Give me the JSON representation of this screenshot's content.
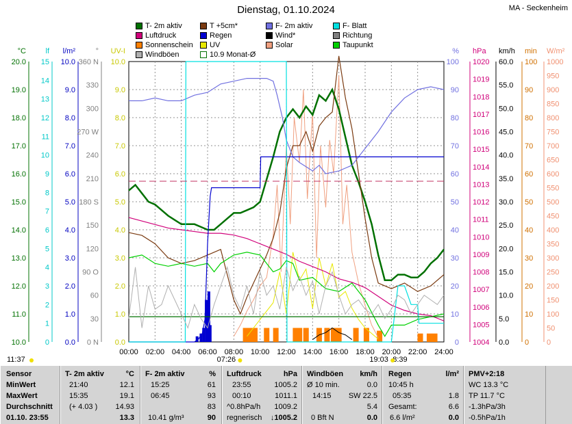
{
  "title": "Dienstag, 01.10.2024",
  "location": "MA - Seckenheim",
  "legend": [
    {
      "label": "T- 2m aktiv",
      "color": "#007000"
    },
    {
      "label": "T +5cm*",
      "color": "#7a3a10"
    },
    {
      "label": "F- 2m aktiv",
      "color": "#7070e0"
    },
    {
      "label": "F- Blatt",
      "color": "#00e0e0"
    },
    {
      "label": "Luftdruck",
      "color": "#d0007a"
    },
    {
      "label": "Regen",
      "color": "#0000d0"
    },
    {
      "label": "Wind*",
      "color": "#000000"
    },
    {
      "label": "Richtung",
      "color": "#808080"
    },
    {
      "label": "Sonnenschein",
      "color": "#ff8000"
    },
    {
      "label": "UV",
      "color": "#e8e800"
    },
    {
      "label": "Solar",
      "color": "#f0a080"
    },
    {
      "label": "Taupunkt",
      "color": "#00d000"
    },
    {
      "label": "Windböen",
      "color": "#b0b0b0"
    },
    {
      "label": "10.9 Monat-Ø",
      "color": "#007000"
    }
  ],
  "units": {
    "temp": "°C",
    "leaf": "lf",
    "rain": "l/m²",
    "dir": "°",
    "uv": "UV-I",
    "hum": "%",
    "press": "hPa",
    "wind": "km/h",
    "sun": "min",
    "solar": "W/m²"
  },
  "axis_ticks": {
    "temp": [
      "20.0",
      "19.0",
      "18.0",
      "17.0",
      "16.0",
      "15.0",
      "14.0",
      "13.0",
      "12.0",
      "11.0",
      "10.0"
    ],
    "leaf": [
      "15",
      "14",
      "13",
      "12",
      "11",
      "10",
      "9",
      "8",
      "7",
      "6",
      "5",
      "4",
      "3",
      "2",
      "1",
      "0"
    ],
    "rain": [
      "10.0",
      "9.0",
      "8.0",
      "7.0",
      "6.0",
      "5.0",
      "4.0",
      "3.0",
      "2.0",
      "1.0",
      "0.0"
    ],
    "dir": [
      "360 N",
      "330",
      "300",
      "270 W",
      "240",
      "210",
      "180 S",
      "150",
      "120",
      "90 O",
      "60",
      "30",
      "0 N"
    ],
    "uv": [
      "10.0",
      "9.0",
      "8.0",
      "7.0",
      "6.0",
      "5.0",
      "4.0",
      "3.0",
      "2.0",
      "1.0",
      "0.0"
    ],
    "hum": [
      "100",
      "90",
      "80",
      "70",
      "60",
      "50",
      "40",
      "30",
      "20",
      "10",
      "0"
    ],
    "press": [
      "1020",
      "1019",
      "1018",
      "1017",
      "1016",
      "1015",
      "1014",
      "1013",
      "1012",
      "1011",
      "1010",
      "1009",
      "1008",
      "1007",
      "1006",
      "1005",
      "1004"
    ],
    "wind": [
      "60.0",
      "55.0",
      "50.0",
      "45.0",
      "40.0",
      "35.0",
      "30.0",
      "25.0",
      "20.0",
      "15.0",
      "10.0",
      "5.0",
      "0.0"
    ],
    "sun": [
      "100",
      "90",
      "80",
      "70",
      "60",
      "50",
      "40",
      "30",
      "20",
      "10",
      "0"
    ],
    "solar": [
      "1000",
      "950",
      "900",
      "850",
      "800",
      "750",
      "700",
      "650",
      "600",
      "550",
      "500",
      "450",
      "400",
      "350",
      "300",
      "250",
      "200",
      "150",
      "100",
      "50",
      "0"
    ]
  },
  "x_ticks": [
    "00:00",
    "02:00",
    "04:00",
    "06:00",
    "08:00",
    "10:00",
    "12:00",
    "14:00",
    "16:00",
    "18:00",
    "20:00",
    "22:00",
    "24:00"
  ],
  "sun_times": {
    "rise_time": "07:26",
    "set_time": "19:03",
    "left": "11:37",
    "duration": "8:39"
  },
  "chart_data": {
    "type": "line",
    "x_unit": "hours",
    "xlim": [
      0,
      24
    ],
    "series": [
      {
        "name": "T- 2m aktiv",
        "axis": "temp",
        "ylim": [
          10,
          20
        ],
        "color": "#007000",
        "x": [
          0,
          0.5,
          1,
          1.5,
          2,
          3,
          4,
          4.5,
          5,
          5.5,
          6,
          6.5,
          7,
          7.5,
          8,
          8.5,
          9,
          9.5,
          10,
          10.5,
          11,
          11.5,
          12,
          12.5,
          13,
          13.5,
          14,
          14.5,
          15,
          15.5,
          16,
          16.5,
          17,
          17.5,
          18,
          18.5,
          19,
          19.5,
          20,
          20.5,
          21,
          21.5,
          22,
          22.5,
          23,
          23.5,
          24
        ],
        "y": [
          15.4,
          15.6,
          15.3,
          15.0,
          14.9,
          14.5,
          14.2,
          14.2,
          14.2,
          14.1,
          14.0,
          14.0,
          14.2,
          14.4,
          14.6,
          14.6,
          14.7,
          14.8,
          15.0,
          15.8,
          16.6,
          17.5,
          18.0,
          18.3,
          18.0,
          18.4,
          18.1,
          18.8,
          18.6,
          19.0,
          18.3,
          17.3,
          16.3,
          15.7,
          15.0,
          14.2,
          13.1,
          12.2,
          12.2,
          12.4,
          12.4,
          12.3,
          12.3,
          12.5,
          12.8,
          13.0,
          13.3
        ]
      },
      {
        "name": "T +5cm*",
        "axis": "temp",
        "ylim": [
          10,
          20
        ],
        "color": "#7a3a10",
        "x": [
          0,
          1,
          2,
          3,
          4,
          5,
          6,
          7,
          8,
          8.5,
          9,
          9.5,
          10,
          10.5,
          11,
          11.5,
          12,
          12.5,
          13,
          13.5,
          14,
          14.5,
          15,
          15.5,
          16,
          16.5,
          17,
          17.5,
          18,
          18.5,
          19,
          20,
          21,
          22,
          23,
          24
        ],
        "y": [
          13.9,
          13.8,
          13.5,
          13.0,
          12.8,
          12.9,
          13.1,
          13.3,
          11.5,
          11.0,
          11.6,
          12.1,
          12.6,
          13.1,
          13.7,
          14.6,
          16.2,
          17.0,
          17.0,
          17.5,
          16.8,
          17.7,
          18.0,
          18.2,
          20.2,
          18.7,
          17.6,
          16.0,
          14.4,
          13.0,
          12.1,
          11.9,
          12.1,
          11.8,
          12.0,
          12.4
        ]
      },
      {
        "name": "F- 2m aktiv",
        "axis": "hum",
        "ylim": [
          0,
          100
        ],
        "color": "#7070e0",
        "x": [
          0,
          1,
          2,
          3,
          4,
          5,
          6,
          7,
          8,
          9,
          10,
          10.5,
          11,
          11.3,
          11.7,
          12,
          12.5,
          13,
          14,
          14.5,
          15,
          16,
          17,
          17.5,
          18,
          19,
          20,
          21,
          22,
          23,
          24
        ],
        "y": [
          86,
          86,
          87,
          86,
          86,
          88,
          89,
          92,
          93,
          94,
          94,
          94,
          93,
          88,
          80,
          72,
          66,
          64,
          61,
          63,
          60,
          61,
          63,
          66,
          69,
          75,
          82,
          87,
          90,
          91,
          90
        ]
      },
      {
        "name": "Taupunkt",
        "axis": "temp",
        "ylim": [
          10,
          20
        ],
        "color": "#00d000",
        "x": [
          0,
          1,
          2,
          3,
          4,
          5,
          6,
          6.5,
          7,
          8,
          9,
          10,
          10.5,
          11,
          11.5,
          12,
          12.5,
          13,
          14,
          15,
          16,
          17,
          18,
          19,
          19.5,
          20,
          21,
          22,
          23,
          24
        ],
        "y": [
          13.0,
          13.1,
          12.8,
          12.7,
          12.8,
          12.7,
          12.8,
          12.5,
          12.8,
          13.1,
          13.2,
          13.1,
          12.8,
          12.5,
          12.6,
          12.9,
          12.8,
          12.2,
          12.3,
          11.9,
          11.8,
          12.1,
          11.5,
          10.6,
          10.2,
          10.6,
          10.6,
          10.8,
          10.9,
          11.0
        ]
      },
      {
        "name": "Luftdruck",
        "axis": "press",
        "ylim": [
          1004,
          1020
        ],
        "color": "#d0007a",
        "x": [
          0,
          1,
          2,
          3,
          4,
          5,
          6,
          7,
          8,
          9,
          10,
          11,
          12,
          13,
          14,
          15,
          16,
          17,
          18,
          19,
          20,
          21,
          22,
          23,
          24
        ],
        "y": [
          1011.1,
          1010.9,
          1010.7,
          1010.5,
          1010.4,
          1010.3,
          1010.2,
          1010.2,
          1010.1,
          1009.9,
          1009.6,
          1009.3,
          1009.0,
          1008.6,
          1008.3,
          1008.0,
          1007.6,
          1007.4,
          1007.1,
          1006.6,
          1006.1,
          1005.8,
          1005.6,
          1005.5,
          1005.2
        ]
      },
      {
        "name": "Regen",
        "axis": "rain",
        "ylim": [
          0,
          10
        ],
        "color": "#0000d0",
        "x": [
          0,
          5,
          5.3,
          5.6,
          5.8,
          6,
          6.2,
          6.3,
          10,
          10.05,
          24
        ],
        "y": [
          0,
          0,
          0.1,
          0.3,
          0.8,
          3.5,
          5.2,
          5.5,
          5.5,
          6.6,
          6.6
        ]
      },
      {
        "name": "F- Blatt",
        "axis": "leaf",
        "ylim": [
          0,
          15
        ],
        "color": "#00e0e0",
        "x": [
          0,
          4.3,
          4.35,
          12,
          12.05,
          20,
          20.5,
          21,
          21.5,
          22,
          22.1,
          23,
          24
        ],
        "y": [
          0,
          0,
          15,
          15,
          0,
          0,
          3,
          3,
          2,
          2,
          1,
          1,
          1
        ]
      },
      {
        "name": "10.9 Monat-Ø",
        "axis": "temp",
        "ylim": [
          10,
          20
        ],
        "color": "#007000",
        "x": [
          0,
          24
        ],
        "y": [
          10.9,
          10.9
        ]
      },
      {
        "name": "Windböen",
        "axis": "wind",
        "ylim": [
          0,
          60
        ],
        "color": "#b0b0b0",
        "x": [
          0,
          0.5,
          1,
          1.5,
          2,
          2.5,
          3,
          3.5,
          4,
          4.5,
          5,
          5.5,
          6,
          6.5,
          7,
          7.5,
          8,
          8.5,
          9,
          9.5,
          10,
          10.5,
          11,
          11.5,
          12,
          12.5,
          13,
          13.5,
          14,
          14.5,
          15,
          15.5,
          16,
          16.5,
          17,
          17.5,
          18,
          18.5,
          19,
          19.5,
          20,
          20.5,
          21,
          21.5,
          22,
          22.5,
          23,
          23.5,
          24
        ],
        "y": [
          5,
          16,
          3,
          12,
          7,
          8,
          12,
          9,
          6,
          3,
          8,
          5,
          3,
          8,
          12,
          16,
          10,
          7,
          12,
          6,
          15,
          10,
          12,
          7,
          16,
          11,
          14,
          10,
          13,
          6,
          12,
          15,
          10,
          6,
          8,
          9,
          7,
          6,
          8,
          5,
          7,
          10,
          9,
          6,
          8,
          10,
          9,
          8,
          10
        ]
      }
    ],
    "bars": [
      {
        "name": "Sonnenschein",
        "axis": "sun",
        "ylim": [
          0,
          100
        ],
        "color": "#ff8000",
        "x": [
          8.9,
          9.3,
          9.6,
          10.5,
          11.2,
          12.7,
          13.0,
          13.5,
          14.5,
          15.1,
          15.6,
          16.0,
          17.3,
          18.1,
          19.1,
          22.2,
          22.9,
          23.3
        ],
        "y": [
          5,
          5,
          5,
          5,
          5,
          5,
          5,
          5,
          5,
          5,
          5,
          5,
          5,
          5,
          4,
          3,
          3,
          3
        ]
      },
      {
        "name": "Regenmenge",
        "axis": "rain",
        "ylim": [
          0,
          10
        ],
        "color": "#0000d0",
        "x": [
          5.2,
          5.5,
          5.7,
          5.9,
          6.1,
          6.2
        ],
        "y": [
          0.2,
          0.3,
          0.5,
          1.5,
          1.8,
          0.6
        ]
      }
    ],
    "noisy": [
      {
        "name": "Solar",
        "axis": "solar",
        "ylim": [
          0,
          1000
        ],
        "color": "#f0a080",
        "x": [
          8,
          8.5,
          9,
          9.5,
          10,
          10.5,
          11,
          11.3,
          11.6,
          12,
          12.3,
          12.6,
          13,
          13.3,
          13.6,
          14,
          14.3,
          14.6,
          15,
          15.3,
          15.6,
          16,
          16.3,
          16.6,
          17,
          17.5,
          18,
          18.5,
          19
        ],
        "y": [
          20,
          60,
          110,
          150,
          200,
          230,
          380,
          560,
          250,
          700,
          420,
          800,
          640,
          900,
          510,
          820,
          300,
          700,
          480,
          720,
          600,
          950,
          420,
          560,
          320,
          210,
          130,
          60,
          15
        ]
      },
      {
        "name": "UV",
        "axis": "uv",
        "ylim": [
          0,
          10
        ],
        "color": "#e8e800",
        "x": [
          9,
          10,
          11,
          11.5,
          12,
          12.5,
          13,
          13.5,
          14,
          14.5,
          15,
          15.5,
          16,
          16.5,
          17,
          17.5,
          18,
          19
        ],
        "y": [
          0.2,
          0.8,
          1.4,
          2.5,
          1.0,
          3.2,
          2.2,
          2.6,
          1.2,
          3.0,
          2.0,
          2.8,
          1.6,
          1.8,
          1.2,
          0.8,
          0.5,
          0.1
        ]
      },
      {
        "name": "Wind*",
        "axis": "wind",
        "ylim": [
          0,
          60
        ],
        "color": "#000000",
        "x": [
          14,
          14.5,
          15,
          15.5,
          16,
          16.5,
          17
        ],
        "y": [
          0.5,
          1.5,
          2,
          3,
          2,
          1.5,
          0.5
        ]
      }
    ]
  },
  "footer": {
    "sensor": {
      "h": "Sensor",
      "min": "MinWert",
      "max": "MaxWert",
      "avg": "Durchschnitt",
      "date": "01.10. 23:55"
    },
    "temp": {
      "h": "T- 2m aktiv",
      "u": "°C",
      "min_t": "21:40",
      "min_v": "12.1",
      "max_t": "15:35",
      "max_v": "19.1",
      "avg_t": "(+ 4.03 )",
      "avg_v": "14.93",
      "cur": "13.3"
    },
    "hum": {
      "h": "F- 2m aktiv",
      "u": "%",
      "min_t": "15:25",
      "min_v": "61",
      "max_t": "06:45",
      "max_v": "93",
      "avg_v": "83",
      "extra": "10.41 g/m³",
      "cur": "90"
    },
    "press": {
      "h": "Luftdruck",
      "u": "hPa",
      "min_t": "23:55",
      "min_v": "1005.2",
      "max_t": "00:10",
      "max_v": "1011.1",
      "avg_t": "^0.8hPa/h",
      "avg_v": "1009.2",
      "trend": "regnerisch",
      "cur": "1005.2"
    },
    "wind": {
      "h": "Windböen",
      "u": "km/h",
      "min_t": "Ø 10 min.",
      "min_v": "0.0",
      "max_t": "14:15",
      "max_v": "SW 22.5",
      "avg_v": "5.4",
      "bft": "0 Bft N",
      "cur": "0.0"
    },
    "rain": {
      "h": "Regen",
      "u": "l/m²",
      "min_t": "10:45 h",
      "max_t": "05:35",
      "max_v": "1.8",
      "tot_l": "Gesamt:",
      "tot_v": "6.6",
      "cur_l": "6.6 l/m²",
      "cur": "0.0"
    },
    "pmv": {
      "h": "PMV+2:18",
      "l1": "WC 13.3 °C",
      "l2": "TP 11.7 °C",
      "l3": "-1.3hPa/3h",
      "l4": "-0.5hPa/1h"
    }
  }
}
